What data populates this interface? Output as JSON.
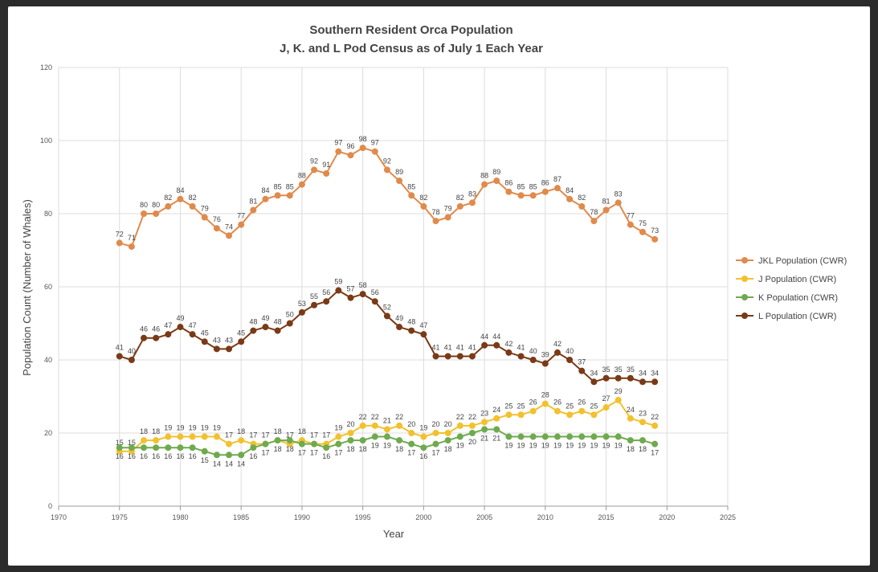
{
  "chart_data": {
    "type": "line",
    "title": "Southern Resident Orca Population",
    "subtitle": "J, K. and L Pod Census as of July 1 Each Year",
    "xlabel": "Year",
    "ylabel": "Population Count (Number of Whales)",
    "xlim": [
      1970,
      2025
    ],
    "ylim": [
      0,
      120
    ],
    "xticks": [
      1970,
      1975,
      1980,
      1985,
      1990,
      1995,
      2000,
      2005,
      2010,
      2015,
      2020,
      2025
    ],
    "yticks": [
      0,
      20,
      40,
      60,
      80,
      100,
      120
    ],
    "grid": true,
    "legend": "right",
    "x": [
      1975,
      1976,
      1977,
      1978,
      1979,
      1980,
      1981,
      1982,
      1983,
      1984,
      1985,
      1986,
      1987,
      1988,
      1989,
      1990,
      1991,
      1992,
      1993,
      1994,
      1995,
      1996,
      1997,
      1998,
      1999,
      2000,
      2001,
      2002,
      2003,
      2004,
      2005,
      2006,
      2007,
      2008,
      2009,
      2010,
      2011,
      2012,
      2013,
      2014,
      2015,
      2016,
      2017,
      2018,
      2019
    ],
    "series": [
      {
        "name": "JKL Population (CWR)",
        "color": "#E08A4C",
        "values": [
          72,
          71,
          80,
          80,
          82,
          84,
          82,
          79,
          76,
          74,
          77,
          81,
          84,
          85,
          85,
          88,
          92,
          91,
          97,
          96,
          98,
          97,
          92,
          89,
          85,
          82,
          78,
          79,
          82,
          83,
          88,
          89,
          86,
          85,
          85,
          86,
          87,
          84,
          82,
          78,
          81,
          83,
          77,
          75,
          73
        ]
      },
      {
        "name": "J Population (CWR)",
        "color": "#F2C12E",
        "values": [
          15,
          15,
          18,
          18,
          19,
          19,
          19,
          19,
          19,
          17,
          18,
          17,
          17,
          18,
          17,
          18,
          17,
          17,
          19,
          20,
          22,
          22,
          21,
          22,
          20,
          19,
          20,
          20,
          22,
          22,
          23,
          24,
          25,
          25,
          26,
          28,
          26,
          25,
          26,
          25,
          27,
          29,
          24,
          23,
          22
        ]
      },
      {
        "name": "K Population (CWR)",
        "color": "#6FAA4E",
        "values": [
          16,
          16,
          16,
          16,
          16,
          16,
          16,
          15,
          14,
          14,
          14,
          16,
          17,
          18,
          18,
          17,
          17,
          16,
          17,
          18,
          18,
          19,
          19,
          18,
          17,
          16,
          17,
          18,
          19,
          20,
          21,
          21,
          19,
          19,
          19,
          19,
          19,
          19,
          19,
          19,
          19,
          19,
          18,
          18,
          17
        ]
      },
      {
        "name": "L Population (CWR)",
        "color": "#7A3A17",
        "values": [
          41,
          40,
          46,
          46,
          47,
          49,
          47,
          45,
          43,
          43,
          45,
          48,
          49,
          48,
          50,
          53,
          55,
          56,
          59,
          57,
          58,
          56,
          52,
          49,
          48,
          47,
          41,
          41,
          41,
          41,
          44,
          44,
          42,
          41,
          40,
          39,
          42,
          40,
          37,
          34,
          35,
          35,
          35,
          34,
          34
        ]
      }
    ]
  }
}
